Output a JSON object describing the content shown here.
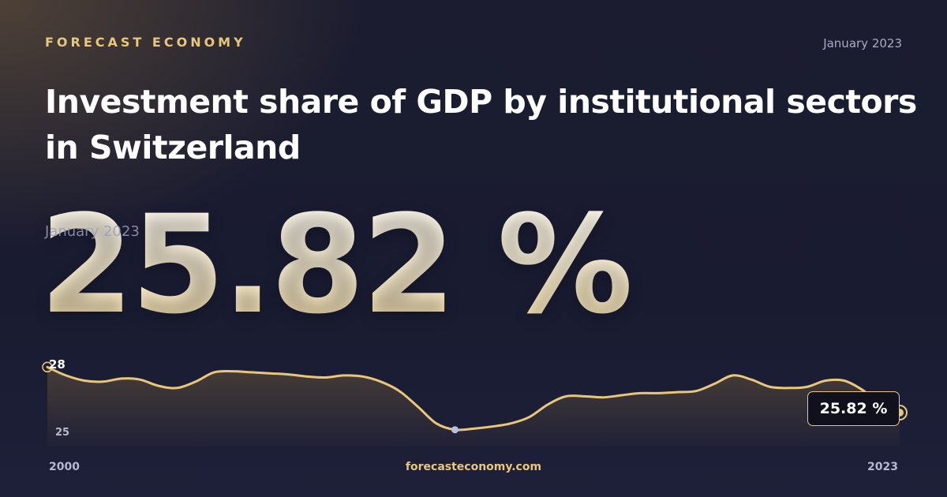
{
  "header": {
    "brand": "FORECAST ECONOMY",
    "date": "January 2023",
    "title": "Investment share of GDP by institutional sectors in Switzerland"
  },
  "headline": {
    "date": "January 2023",
    "value": "25.82 %"
  },
  "footer": {
    "site": "forecasteconomy.com"
  },
  "colors": {
    "accent": "#e8c77c",
    "background": "#181a2e",
    "min_marker": "#b9c0e0"
  },
  "chart_data": {
    "type": "area",
    "title": "",
    "xlabel": "",
    "ylabel": "",
    "x_tick_labels": [
      "2000",
      "2023"
    ],
    "y_tick_labels": [
      "28",
      "25"
    ],
    "x_range": [
      2000,
      2023
    ],
    "ylim": [
      24.8,
      28.2
    ],
    "grid": false,
    "legend": "none",
    "last_value_label": "25.82 %",
    "series": [
      {
        "values": [
          [
            2000.0,
            28.0
          ],
          [
            2000.5,
            27.6
          ],
          [
            2001.0,
            27.35
          ],
          [
            2001.5,
            27.3
          ],
          [
            2002.0,
            27.45
          ],
          [
            2002.5,
            27.4
          ],
          [
            2003.0,
            27.1
          ],
          [
            2003.5,
            27.0
          ],
          [
            2004.0,
            27.3
          ],
          [
            2004.5,
            27.75
          ],
          [
            2005.0,
            27.8
          ],
          [
            2005.5,
            27.75
          ],
          [
            2006.0,
            27.7
          ],
          [
            2006.5,
            27.65
          ],
          [
            2007.0,
            27.55
          ],
          [
            2007.5,
            27.5
          ],
          [
            2008.0,
            27.6
          ],
          [
            2008.5,
            27.55
          ],
          [
            2009.0,
            27.3
          ],
          [
            2009.5,
            26.85
          ],
          [
            2010.0,
            26.1
          ],
          [
            2010.5,
            25.3
          ],
          [
            2011.0,
            25.0
          ],
          [
            2011.5,
            25.05
          ],
          [
            2012.0,
            25.15
          ],
          [
            2012.5,
            25.3
          ],
          [
            2013.0,
            25.6
          ],
          [
            2013.5,
            26.2
          ],
          [
            2014.0,
            26.6
          ],
          [
            2014.5,
            26.6
          ],
          [
            2015.0,
            26.55
          ],
          [
            2015.5,
            26.65
          ],
          [
            2016.0,
            26.75
          ],
          [
            2016.5,
            26.75
          ],
          [
            2017.0,
            26.8
          ],
          [
            2017.5,
            26.85
          ],
          [
            2018.0,
            27.2
          ],
          [
            2018.5,
            27.6
          ],
          [
            2019.0,
            27.4
          ],
          [
            2019.5,
            27.05
          ],
          [
            2020.0,
            27.0
          ],
          [
            2020.5,
            27.05
          ],
          [
            2021.0,
            27.35
          ],
          [
            2021.5,
            27.35
          ],
          [
            2022.0,
            26.9
          ],
          [
            2022.5,
            26.2
          ],
          [
            2023.0,
            25.82
          ]
        ]
      }
    ],
    "min_point": [
      2011.0,
      25.0
    ]
  }
}
